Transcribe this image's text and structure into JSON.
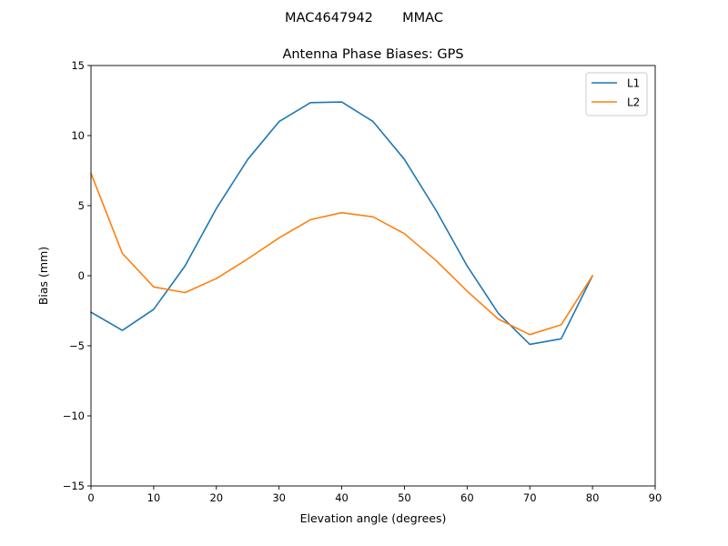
{
  "suptitle": "MAC4647942       MMAC",
  "chart_data": {
    "type": "line",
    "title": "Antenna Phase Biases: GPS",
    "xlabel": "Elevation angle (degrees)",
    "ylabel": "Bias (mm)",
    "xlim": [
      0,
      90
    ],
    "ylim": [
      -15,
      15
    ],
    "xticks": [
      0,
      10,
      20,
      30,
      40,
      50,
      60,
      70,
      80,
      90
    ],
    "yticks": [
      -15,
      -10,
      -5,
      0,
      5,
      10,
      15
    ],
    "x": [
      0,
      5,
      10,
      15,
      20,
      25,
      30,
      35,
      40,
      45,
      50,
      55,
      60,
      65,
      70,
      75,
      80
    ],
    "series": [
      {
        "name": "L1",
        "color": "#1f77b4",
        "values": [
          -2.6,
          -3.9,
          -2.4,
          0.7,
          4.8,
          8.3,
          11.0,
          12.35,
          12.4,
          11.0,
          8.3,
          4.7,
          0.7,
          -2.7,
          -4.9,
          -4.5,
          0.0
        ]
      },
      {
        "name": "L2",
        "color": "#ff7f0e",
        "values": [
          7.3,
          1.6,
          -0.8,
          -1.2,
          -0.2,
          1.2,
          2.7,
          4.0,
          4.5,
          4.2,
          3.0,
          1.1,
          -1.1,
          -3.1,
          -4.2,
          -3.5,
          0.0
        ]
      }
    ],
    "legend": "top-right",
    "grid": false
  }
}
